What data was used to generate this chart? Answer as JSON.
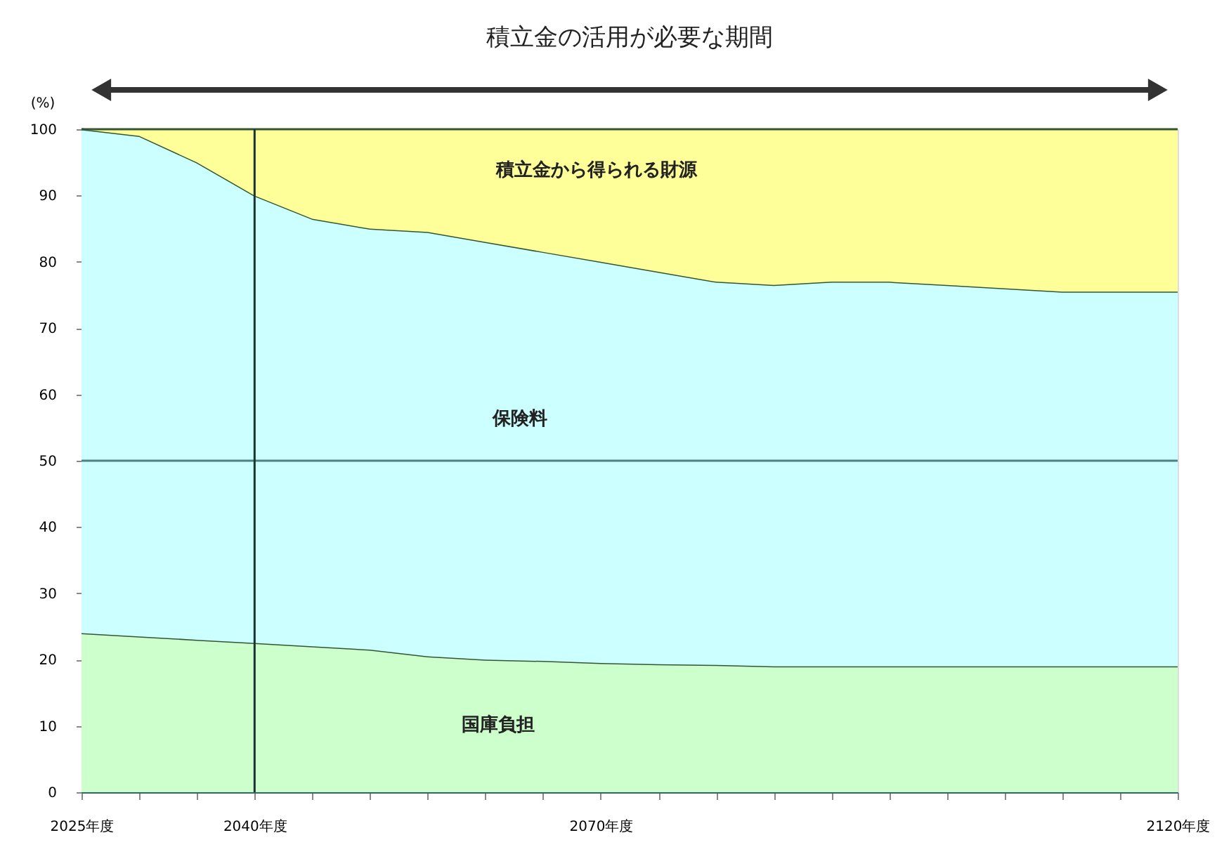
{
  "chart_data": {
    "type": "area",
    "stacked": true,
    "title": "積立金の活用が必要な期間",
    "ylabel": "(%)",
    "x": [
      2025,
      2030,
      2035,
      2040,
      2045,
      2050,
      2055,
      2060,
      2065,
      2070,
      2075,
      2080,
      2085,
      2090,
      2095,
      2100,
      2105,
      2110,
      2115,
      2120
    ],
    "series": [
      {
        "name": "国庫負担",
        "color": "#ccffcc",
        "values": [
          24,
          23.5,
          23,
          22.5,
          22,
          21.5,
          20.5,
          20,
          19.8,
          19.5,
          19.3,
          19.2,
          19,
          19,
          19,
          19,
          19,
          19,
          19,
          19
        ]
      },
      {
        "name": "保険料",
        "color": "#ccffff",
        "values": [
          76,
          75.5,
          72,
          67.5,
          64.5,
          63.5,
          64,
          63,
          61.7,
          60.5,
          59.2,
          57.8,
          57.5,
          58,
          58,
          57.5,
          57,
          56.5,
          56.5,
          56.5
        ]
      },
      {
        "name": "積立金から得られる財源",
        "color": "#ffff99",
        "values": [
          0,
          1,
          5,
          10,
          13.5,
          15,
          15.5,
          17,
          18.5,
          20,
          21.5,
          23,
          23.5,
          23,
          23,
          23.5,
          24,
          24.5,
          24.5,
          24.5
        ]
      }
    ],
    "xlim": [
      2025,
      2120
    ],
    "ylim": [
      0,
      100
    ],
    "xticks": [
      {
        "value": 2025,
        "label": "2025年度"
      },
      {
        "value": 2030,
        "label": null
      },
      {
        "value": 2035,
        "label": null
      },
      {
        "value": 2040,
        "label": "2040年度"
      },
      {
        "value": 2045,
        "label": null
      },
      {
        "value": 2050,
        "label": null
      },
      {
        "value": 2055,
        "label": null
      },
      {
        "value": 2060,
        "label": null
      },
      {
        "value": 2065,
        "label": null
      },
      {
        "value": 2070,
        "label": "2070年度"
      },
      {
        "value": 2075,
        "label": null
      },
      {
        "value": 2080,
        "label": null
      },
      {
        "value": 2085,
        "label": null
      },
      {
        "value": 2090,
        "label": null
      },
      {
        "value": 2095,
        "label": null
      },
      {
        "value": 2100,
        "label": null
      },
      {
        "value": 2105,
        "label": null
      },
      {
        "value": 2110,
        "label": null
      },
      {
        "value": 2115,
        "label": null
      },
      {
        "value": 2120,
        "label": "2120年度"
      }
    ],
    "yticks": [
      0,
      10,
      20,
      30,
      40,
      50,
      60,
      70,
      80,
      90,
      100
    ],
    "ref_lines": [
      {
        "axis": "y",
        "value": 50,
        "color": "#4d8080"
      },
      {
        "axis": "x",
        "value": 2040,
        "color": "#1a3333"
      }
    ]
  }
}
